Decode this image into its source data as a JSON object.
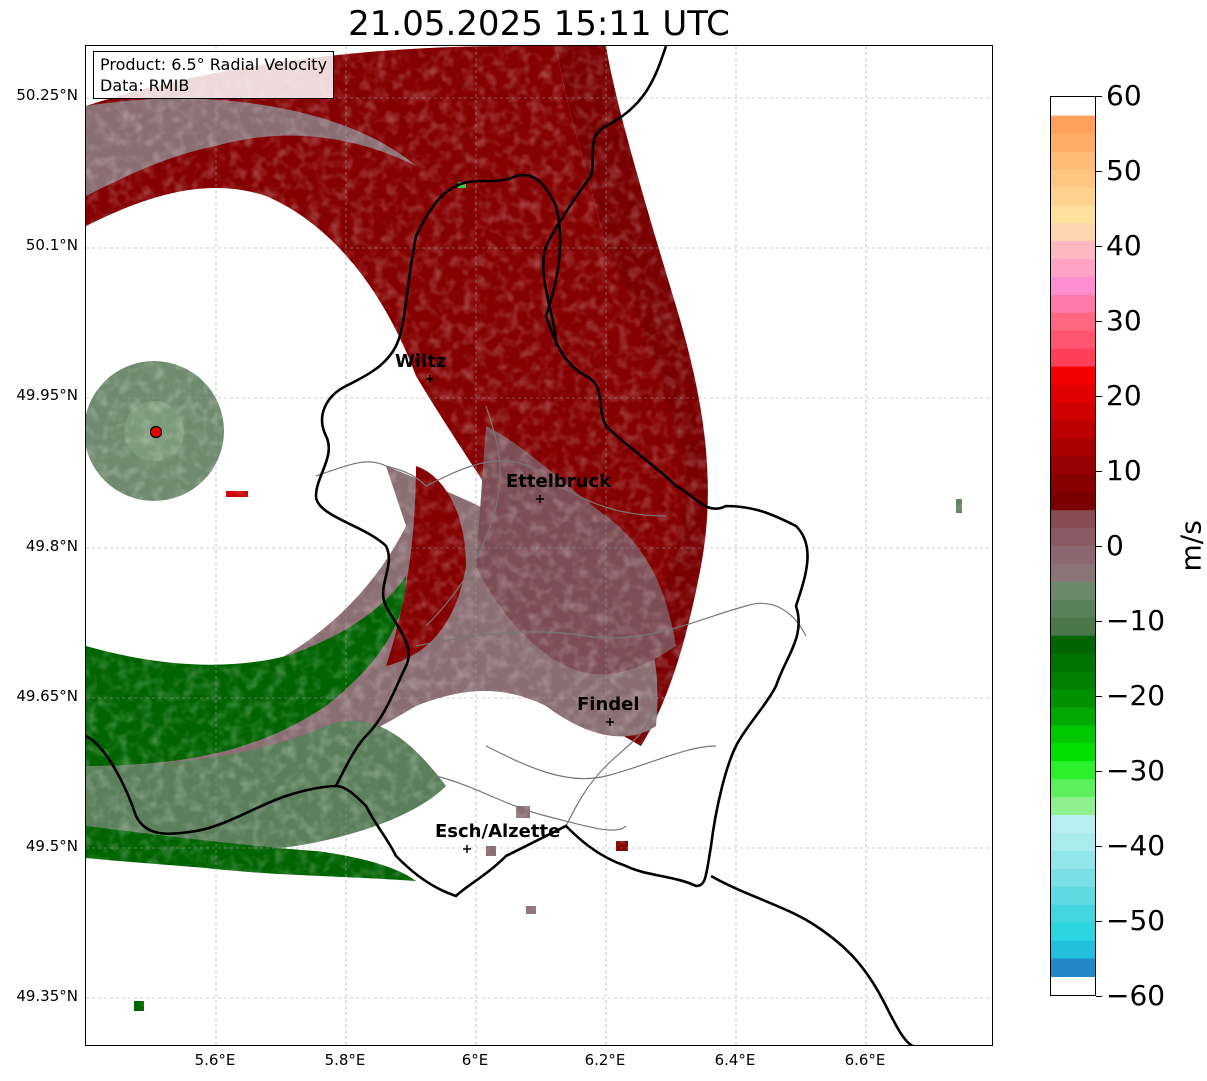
{
  "title": "21.05.2025 15:11 UTC",
  "info": {
    "product": "Product: 6.5° Radial Velocity",
    "data": "Data: RMIB"
  },
  "lat_ticks": [
    "50.25°N",
    "50.1°N",
    "49.95°N",
    "49.8°N",
    "49.65°N",
    "49.5°N",
    "49.35°N"
  ],
  "lon_ticks": [
    "5.6°E",
    "5.8°E",
    "6°E",
    "6.2°E",
    "6.4°E",
    "6.6°E"
  ],
  "cities": [
    {
      "name": "Wiltz"
    },
    {
      "name": "Ettelbruck"
    },
    {
      "name": "Findel"
    },
    {
      "name": "Esch/Alzette"
    }
  ],
  "colorbar": {
    "unit": "m/s",
    "ticks": [
      "60",
      "50",
      "40",
      "30",
      "20",
      "10",
      "0",
      "−10",
      "−20",
      "−30",
      "−40",
      "−50",
      "−60"
    ],
    "min": -60,
    "max": 60
  },
  "colors": {
    "approaching_dark": "#006400",
    "near_zero": "#8a6e74",
    "receding_dark": "#8b0000",
    "receding_bright": "#e60000"
  }
}
